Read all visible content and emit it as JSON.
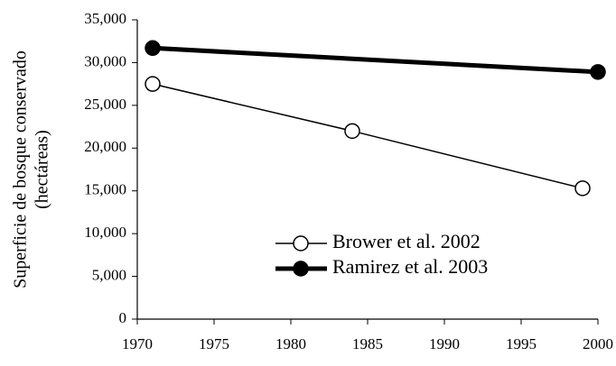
{
  "chart_data": {
    "type": "line",
    "y_label": [
      "Superficie de bosque conservado",
      "(hectáreas)"
    ],
    "xlim": [
      1970,
      2000
    ],
    "xticks": [
      1970,
      1975,
      1980,
      1985,
      1990,
      1995,
      2000
    ],
    "ylim": [
      0,
      35000
    ],
    "yticks": [
      0,
      {
        "value": 5000,
        "label": "5,000"
      },
      {
        "value": 10000,
        "label": "10,000"
      },
      {
        "value": 15000,
        "label": "15,000"
      },
      {
        "value": 20000,
        "label": "20,000"
      },
      {
        "value": 25000,
        "label": "25,000"
      },
      {
        "value": 30000,
        "label": "30,000"
      },
      {
        "value": 35000,
        "label": "35,000"
      }
    ],
    "grid": false,
    "legend": "lower center",
    "series": [
      {
        "name": "Brower et al. 2002",
        "color": "#000000",
        "marker": "open",
        "line": "thin",
        "x": [
          1971,
          1984,
          1999
        ],
        "values": [
          27500,
          22000,
          15300
        ]
      },
      {
        "name": "Ramirez et al. 2003",
        "color": "#000000",
        "marker": "filled",
        "line": "thick",
        "x": [
          1971,
          2000
        ],
        "values": [
          31700,
          28900
        ]
      }
    ]
  }
}
